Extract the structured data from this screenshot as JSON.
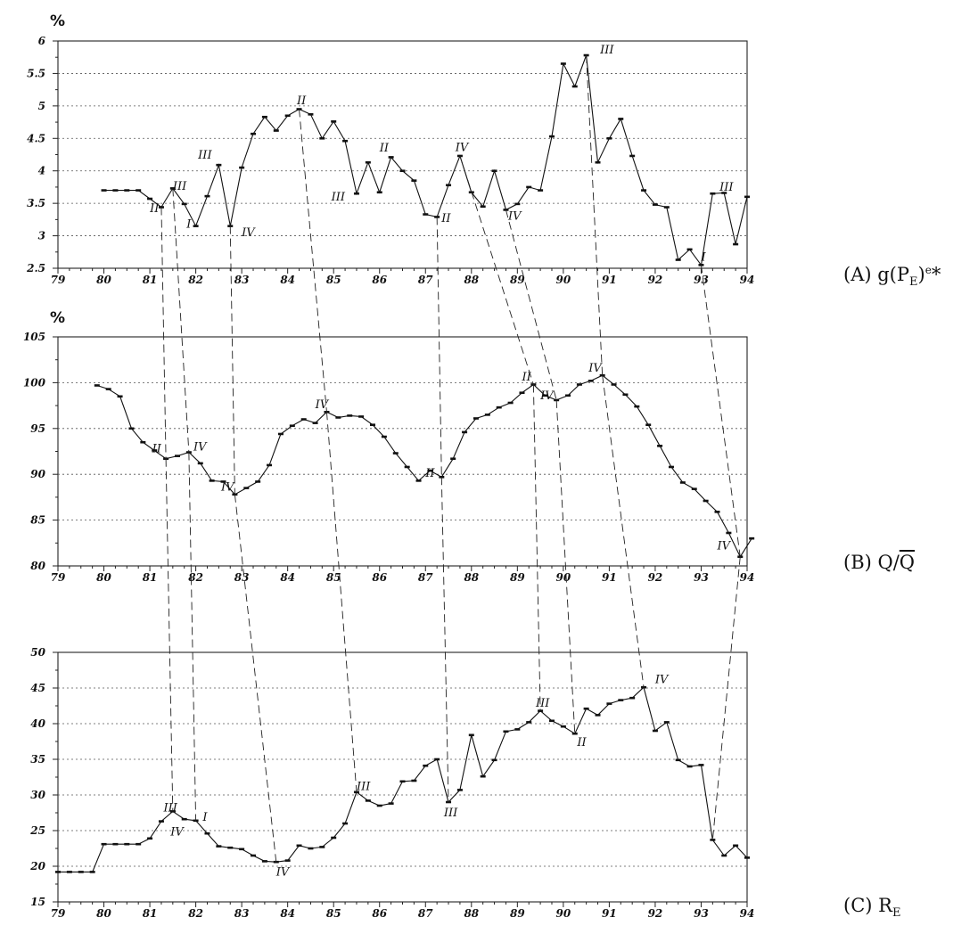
{
  "chart_data": [
    {
      "type": "line",
      "panel_label": {
        "prefix": "(A) g(P",
        "sub": "E",
        "post": ")",
        "sup": "e",
        "tail": "*"
      },
      "unit": "%",
      "ylim": [
        2.5,
        6
      ],
      "yticks": [
        2.5,
        3,
        3.5,
        4,
        4.5,
        5,
        5.5,
        6
      ],
      "xlim": [
        79,
        94
      ],
      "xticks": [
        "79",
        "80",
        "81",
        "82",
        "83",
        "84",
        "85",
        "86",
        "87",
        "88",
        "89",
        "90",
        "91",
        "92",
        "93",
        "94"
      ],
      "grid": true,
      "series": [
        {
          "x": [
            80.0,
            80.25,
            80.5,
            80.75,
            81.0,
            81.25,
            81.5,
            81.75,
            82.0,
            82.25,
            82.5,
            82.75,
            83.0,
            83.25,
            83.5,
            83.75,
            84.0,
            84.25,
            84.5,
            84.75,
            85.0,
            85.25,
            85.5,
            85.75,
            86.0,
            86.25,
            86.5,
            86.75,
            87.0,
            87.25,
            87.5,
            87.75,
            88.0,
            88.25,
            88.5,
            88.75,
            89.0,
            89.25,
            89.5,
            89.75,
            90.0,
            90.25,
            90.5,
            90.75,
            91.0,
            91.25,
            91.5,
            91.75,
            92.0,
            92.25,
            92.5,
            92.75,
            93.0,
            93.25,
            93.5,
            93.75,
            94.0
          ],
          "y": [
            3.7,
            3.7,
            3.7,
            3.7,
            3.57,
            3.44,
            3.73,
            3.49,
            3.15,
            3.61,
            4.09,
            3.15,
            4.05,
            4.57,
            4.83,
            4.62,
            4.85,
            4.95,
            4.87,
            4.5,
            4.76,
            4.46,
            3.65,
            4.13,
            3.67,
            4.21,
            4.0,
            3.85,
            3.33,
            3.29,
            3.78,
            4.23,
            3.67,
            3.45,
            4.0,
            3.4,
            3.49,
            3.75,
            3.7,
            4.53,
            5.65,
            5.3,
            5.78,
            4.13,
            4.5,
            4.8,
            4.23,
            3.7,
            3.48,
            3.44,
            2.63,
            2.79,
            2.55,
            3.65,
            3.66,
            2.87,
            3.6
          ]
        }
      ],
      "annotations": [
        {
          "text": "II",
          "x": 81.0,
          "y": 3.42
        },
        {
          "text": "III",
          "x": 81.5,
          "y": 3.76
        },
        {
          "text": "I",
          "x": 81.8,
          "y": 3.18
        },
        {
          "text": "III",
          "x": 82.05,
          "y": 4.24
        },
        {
          "text": "IV",
          "x": 83.0,
          "y": 3.05
        },
        {
          "text": "II",
          "x": 84.2,
          "y": 5.08
        },
        {
          "text": "III",
          "x": 84.95,
          "y": 3.6
        },
        {
          "text": "II",
          "x": 86.0,
          "y": 4.35
        },
        {
          "text": "II",
          "x": 87.35,
          "y": 3.27
        },
        {
          "text": "IV",
          "x": 87.65,
          "y": 4.36
        },
        {
          "text": "IV",
          "x": 88.8,
          "y": 3.3
        },
        {
          "text": "III",
          "x": 90.8,
          "y": 5.86
        },
        {
          "text": "I",
          "x": 93.0,
          "y": 2.67
        },
        {
          "text": "III",
          "x": 93.4,
          "y": 3.75
        }
      ]
    },
    {
      "type": "line",
      "panel_label": {
        "prefix": "(B) Q/",
        "over": "Q"
      },
      "unit": "%",
      "ylim": [
        80,
        105
      ],
      "yticks": [
        80,
        85,
        90,
        95,
        100,
        105
      ],
      "xlim": [
        79,
        94
      ],
      "xticks": [
        "79",
        "80",
        "81",
        "82",
        "83",
        "84",
        "85",
        "86",
        "87",
        "88",
        "89",
        "90",
        "91",
        "92",
        "93",
        "94"
      ],
      "grid": true,
      "series": [
        {
          "x": [
            79.85,
            80.1,
            80.35,
            80.6,
            80.85,
            81.1,
            81.35,
            81.6,
            81.85,
            82.1,
            82.35,
            82.6,
            82.85,
            83.1,
            83.35,
            83.6,
            83.85,
            84.1,
            84.35,
            84.6,
            84.85,
            85.1,
            85.35,
            85.6,
            85.85,
            86.1,
            86.35,
            86.6,
            86.85,
            87.1,
            87.35,
            87.6,
            87.85,
            88.1,
            88.35,
            88.6,
            88.85,
            89.1,
            89.35,
            89.6,
            89.85,
            90.1,
            90.35,
            90.6,
            90.85,
            91.1,
            91.35,
            91.6,
            91.85,
            92.1,
            92.35,
            92.6,
            92.85,
            93.1,
            93.35,
            93.6,
            93.85,
            94.1
          ],
          "y": [
            99.7,
            99.3,
            98.5,
            95.0,
            93.5,
            92.6,
            91.7,
            92.0,
            92.4,
            91.2,
            89.3,
            89.2,
            87.8,
            88.5,
            89.2,
            91.0,
            94.4,
            95.3,
            96.0,
            95.6,
            96.8,
            96.2,
            96.4,
            96.3,
            95.4,
            94.1,
            92.3,
            90.8,
            89.3,
            90.4,
            89.7,
            91.7,
            94.6,
            96.1,
            96.5,
            97.3,
            97.8,
            98.9,
            99.8,
            98.6,
            98.1,
            98.6,
            99.8,
            100.2,
            100.8,
            99.8,
            98.7,
            97.4,
            95.4,
            93.1,
            90.8,
            89.1,
            88.4,
            87.1,
            85.9,
            83.6,
            81.0,
            83.0
          ]
        }
      ],
      "annotations": [
        {
          "text": "II",
          "x": 81.05,
          "y": 92.8
        },
        {
          "text": "IV",
          "x": 81.95,
          "y": 93.0
        },
        {
          "text": "IV",
          "x": 82.55,
          "y": 88.6
        },
        {
          "text": "IV",
          "x": 84.6,
          "y": 97.6
        },
        {
          "text": "II",
          "x": 87.0,
          "y": 90.1
        },
        {
          "text": "II",
          "x": 89.1,
          "y": 100.6
        },
        {
          "text": "IV",
          "x": 89.5,
          "y": 98.6
        },
        {
          "text": "IV",
          "x": 90.55,
          "y": 101.6
        },
        {
          "text": "IV",
          "x": 93.35,
          "y": 82.2
        }
      ]
    },
    {
      "type": "line",
      "panel_label": {
        "prefix": "(C) R",
        "sub": "E"
      },
      "unit": "",
      "ylim": [
        15,
        50
      ],
      "yticks": [
        15,
        20,
        25,
        30,
        35,
        40,
        45,
        50
      ],
      "xlim": [
        79,
        94
      ],
      "xticks": [
        "79",
        "80",
        "81",
        "82",
        "83",
        "84",
        "85",
        "86",
        "87",
        "88",
        "89",
        "90",
        "91",
        "92",
        "93",
        "94"
      ],
      "grid": true,
      "series": [
        {
          "x": [
            79.0,
            79.25,
            79.5,
            79.75,
            80.0,
            80.25,
            80.5,
            80.75,
            81.0,
            81.25,
            81.5,
            81.75,
            82.0,
            82.25,
            82.5,
            82.75,
            83.0,
            83.25,
            83.5,
            83.75,
            84.0,
            84.25,
            84.5,
            84.75,
            85.0,
            85.25,
            85.5,
            85.75,
            86.0,
            86.25,
            86.5,
            86.75,
            87.0,
            87.25,
            87.5,
            87.75,
            88.0,
            88.25,
            88.5,
            88.75,
            89.0,
            89.25,
            89.5,
            89.75,
            90.0,
            90.25,
            90.5,
            90.75,
            91.0,
            91.25,
            91.5,
            91.75,
            92.0,
            92.25,
            92.5,
            92.75,
            93.0,
            93.25,
            93.5,
            93.75,
            94.0
          ],
          "y": [
            19.2,
            19.2,
            19.2,
            19.2,
            23.1,
            23.1,
            23.1,
            23.1,
            23.9,
            26.3,
            27.7,
            26.6,
            26.4,
            24.6,
            22.8,
            22.6,
            22.4,
            21.5,
            20.7,
            20.6,
            20.8,
            22.9,
            22.5,
            22.7,
            24.0,
            26.0,
            30.4,
            29.2,
            28.5,
            28.8,
            31.9,
            32.0,
            34.1,
            35.0,
            29.0,
            30.7,
            38.4,
            32.6,
            34.9,
            38.9,
            39.2,
            40.2,
            41.8,
            40.4,
            39.6,
            38.6,
            42.1,
            41.2,
            42.8,
            43.3,
            43.6,
            45.1,
            39.0,
            40.2,
            34.9,
            34.0,
            34.2,
            23.7,
            21.5,
            22.9,
            21.2
          ]
        }
      ],
      "annotations": [
        {
          "text": "III",
          "x": 81.3,
          "y": 28.2
        },
        {
          "text": "I",
          "x": 82.15,
          "y": 26.9
        },
        {
          "text": "IV",
          "x": 81.45,
          "y": 24.8
        },
        {
          "text": "IV",
          "x": 83.75,
          "y": 19.2
        },
        {
          "text": "III",
          "x": 85.5,
          "y": 31.2
        },
        {
          "text": "III",
          "x": 87.4,
          "y": 27.5
        },
        {
          "text": "III",
          "x": 89.4,
          "y": 42.9
        },
        {
          "text": "II",
          "x": 90.3,
          "y": 37.4
        },
        {
          "text": "IV",
          "x": 92.0,
          "y": 46.2
        }
      ]
    }
  ],
  "connectors": [
    {
      "from": [
        0,
        81.25,
        3.44
      ],
      "to": [
        1,
        81.35,
        91.7
      ]
    },
    {
      "from": [
        0,
        81.5,
        3.73
      ],
      "to": [
        1,
        81.85,
        92.4
      ]
    },
    {
      "from": [
        0,
        82.75,
        3.15
      ],
      "to": [
        1,
        82.85,
        87.8
      ]
    },
    {
      "from": [
        0,
        84.25,
        4.95
      ],
      "to": [
        1,
        84.85,
        96.8
      ]
    },
    {
      "from": [
        0,
        87.25,
        3.29
      ],
      "to": [
        1,
        87.35,
        89.7
      ]
    },
    {
      "from": [
        0,
        87.75,
        4.23
      ],
      "to": [
        1,
        89.35,
        99.8
      ]
    },
    {
      "from": [
        0,
        88.75,
        3.4
      ],
      "to": [
        1,
        89.85,
        98.1
      ]
    },
    {
      "from": [
        0,
        90.5,
        5.78
      ],
      "to": [
        1,
        90.85,
        100.8
      ]
    },
    {
      "from": [
        0,
        93.0,
        2.55
      ],
      "to": [
        1,
        93.85,
        81.0
      ]
    },
    {
      "from": [
        1,
        81.35,
        91.7
      ],
      "to": [
        2,
        81.5,
        27.7
      ]
    },
    {
      "from": [
        1,
        81.85,
        92.4
      ],
      "to": [
        2,
        82.0,
        26.4
      ]
    },
    {
      "from": [
        1,
        82.85,
        87.8
      ],
      "to": [
        2,
        83.75,
        20.6
      ]
    },
    {
      "from": [
        1,
        84.85,
        96.8
      ],
      "to": [
        2,
        85.5,
        30.4
      ]
    },
    {
      "from": [
        1,
        87.35,
        89.7
      ],
      "to": [
        2,
        87.5,
        29.0
      ]
    },
    {
      "from": [
        1,
        89.35,
        99.8
      ],
      "to": [
        2,
        89.5,
        41.8
      ]
    },
    {
      "from": [
        1,
        89.85,
        98.1
      ],
      "to": [
        2,
        90.25,
        38.6
      ]
    },
    {
      "from": [
        1,
        90.85,
        100.8
      ],
      "to": [
        2,
        91.75,
        45.1
      ]
    },
    {
      "from": [
        1,
        93.85,
        81.0
      ],
      "to": [
        2,
        93.25,
        23.7
      ]
    }
  ]
}
